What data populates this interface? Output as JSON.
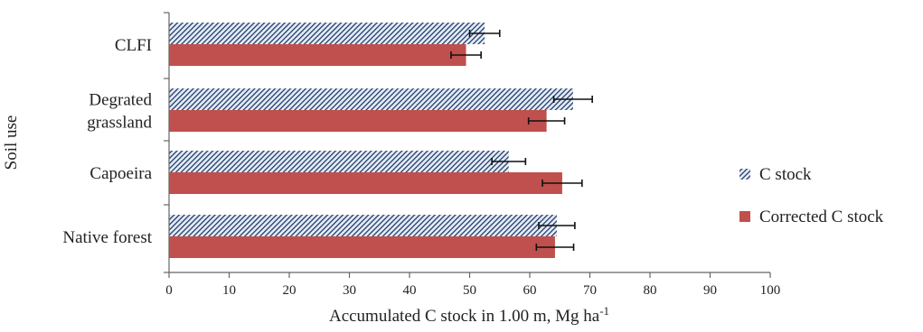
{
  "chart_data": {
    "type": "bar",
    "orientation": "horizontal",
    "categories": [
      "CLFI",
      "Degrated grassland",
      "Capoeira",
      "Native forest"
    ],
    "category_lines": [
      [
        "CLFI"
      ],
      [
        "Degrated",
        "grassland"
      ],
      [
        "Capoeira"
      ],
      [
        "Native forest"
      ]
    ],
    "series": [
      {
        "name": "C stock",
        "values": [
          52.5,
          67.2,
          56.5,
          64.5
        ],
        "errors": [
          2.5,
          3.2,
          2.8,
          3.0
        ],
        "pattern": "diagonal-hatch",
        "color": "#1f3b6b"
      },
      {
        "name": "Corrected C stock",
        "values": [
          49.4,
          62.8,
          65.4,
          64.2
        ],
        "errors": [
          2.5,
          3.0,
          3.3,
          3.1
        ],
        "pattern": "solid",
        "color": "#c0504d"
      }
    ],
    "xlabel": "Accumulated C stock in 1.00 m, Mg ha",
    "xlabel_superscript": "-1",
    "ylabel": "Soil use",
    "xlim": [
      0,
      100
    ],
    "xticks": [
      "0",
      "10",
      "20",
      "30",
      "40",
      "50",
      "60",
      "70",
      "80",
      "90",
      "100"
    ],
    "grid": false,
    "legend_position": "right"
  }
}
